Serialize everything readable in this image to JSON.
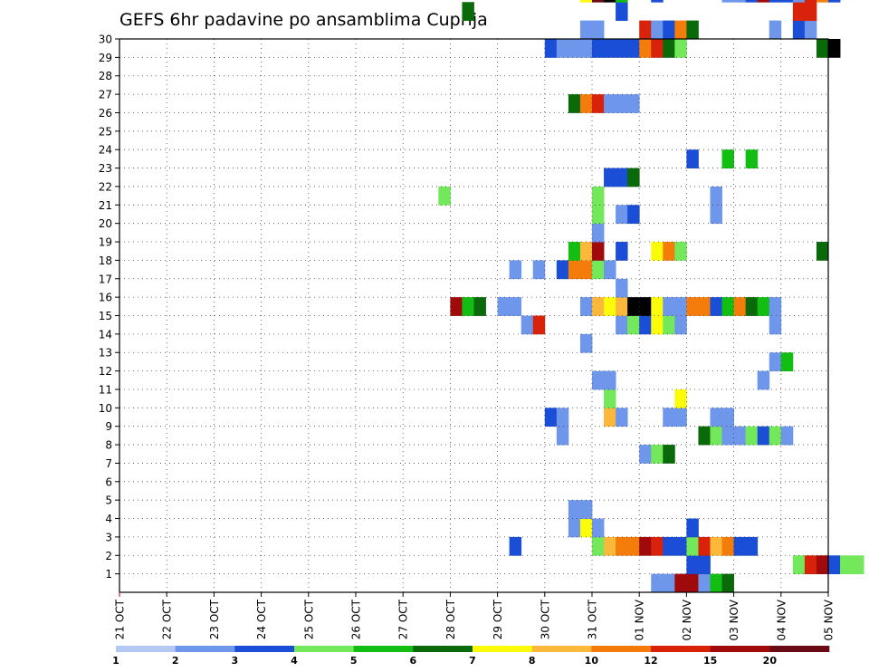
{
  "chart_data": {
    "type": "heatmap",
    "title": "GEFS 6hr padavine po ansamblima Cuprija",
    "xlabel": "",
    "ylabel": "",
    "x_tick_labels": [
      "21 OCT",
      "22 OCT",
      "23 OCT",
      "24 OCT",
      "25 OCT",
      "26 OCT",
      "27 OCT",
      "28 OCT",
      "29 OCT",
      "30 OCT",
      "31 OCT",
      "01 NOV",
      "02 NOV",
      "03 NOV",
      "04 NOV",
      "05 NOV"
    ],
    "x_range_steps": [
      0,
      60
    ],
    "steps_per_day": 4,
    "y_tick_labels": [
      "1",
      "2",
      "3",
      "4",
      "5",
      "6",
      "7",
      "8",
      "9",
      "10",
      "11",
      "12",
      "13",
      "14",
      "15",
      "16",
      "17",
      "18",
      "19",
      "20",
      "21",
      "22",
      "23",
      "24",
      "25",
      "26",
      "27",
      "28",
      "29",
      "30"
    ],
    "y_range": [
      0,
      30
    ],
    "grid": true,
    "colorbar": {
      "orientation": "horizontal",
      "placement": "bottom",
      "boundaries": [
        1,
        2,
        3,
        4,
        5,
        6,
        7,
        8,
        10,
        12,
        15,
        20
      ],
      "labels": [
        "1",
        "2",
        "3",
        "4",
        "5",
        "6",
        "7",
        "8",
        "10",
        "12",
        "15",
        "20"
      ],
      "colors": [
        "#b4c8f4",
        "#6e96eb",
        "#1a4ed6",
        "#72e85a",
        "#12be12",
        "#0a6a0a",
        "#fcfc0a",
        "#fcb83a",
        "#f47c0a",
        "#d8220a",
        "#a00a0a",
        "#6a0a14"
      ]
    },
    "cells": [
      [
        45,
        0,
        1
      ],
      [
        46,
        0,
        1
      ],
      [
        47,
        0,
        10
      ],
      [
        48,
        0,
        10
      ],
      [
        49,
        0,
        1
      ],
      [
        50,
        0,
        4
      ],
      [
        51,
        0,
        5
      ],
      [
        48,
        1,
        2
      ],
      [
        49,
        1,
        2
      ],
      [
        57,
        1,
        3
      ],
      [
        58,
        1,
        9
      ],
      [
        59,
        1,
        10
      ],
      [
        60,
        1,
        2
      ],
      [
        61,
        1,
        3
      ],
      [
        62,
        1,
        3
      ],
      [
        33,
        2,
        2
      ],
      [
        40,
        2,
        3
      ],
      [
        41,
        2,
        7
      ],
      [
        42,
        2,
        8
      ],
      [
        43,
        2,
        8
      ],
      [
        44,
        2,
        10
      ],
      [
        45,
        2,
        9
      ],
      [
        46,
        2,
        2
      ],
      [
        47,
        2,
        2
      ],
      [
        48,
        2,
        3
      ],
      [
        49,
        2,
        9
      ],
      [
        50,
        2,
        7
      ],
      [
        51,
        2,
        8
      ],
      [
        52,
        2,
        2
      ],
      [
        53,
        2,
        2
      ],
      [
        38,
        3,
        1
      ],
      [
        39,
        3,
        6
      ],
      [
        40,
        3,
        1
      ],
      [
        48,
        3,
        2
      ],
      [
        38,
        4,
        1
      ],
      [
        39,
        4,
        1
      ],
      [
        44,
        7,
        1
      ],
      [
        45,
        7,
        3
      ],
      [
        46,
        7,
        5
      ],
      [
        37,
        8,
        1
      ],
      [
        49,
        8,
        5
      ],
      [
        50,
        8,
        3
      ],
      [
        51,
        8,
        1
      ],
      [
        52,
        8,
        1
      ],
      [
        53,
        8,
        3
      ],
      [
        54,
        8,
        2
      ],
      [
        55,
        8,
        3
      ],
      [
        56,
        8,
        1
      ],
      [
        36,
        9,
        2
      ],
      [
        37,
        9,
        1
      ],
      [
        41,
        9,
        7
      ],
      [
        42,
        9,
        1
      ],
      [
        46,
        9,
        1
      ],
      [
        47,
        9,
        1
      ],
      [
        50,
        9,
        1
      ],
      [
        51,
        9,
        1
      ],
      [
        41,
        10,
        3
      ],
      [
        47,
        10,
        6
      ],
      [
        40,
        11,
        1
      ],
      [
        41,
        11,
        1
      ],
      [
        54,
        11,
        1
      ],
      [
        55,
        12,
        1
      ],
      [
        56,
        12,
        4
      ],
      [
        39,
        13,
        1
      ],
      [
        34,
        14,
        1
      ],
      [
        35,
        14,
        9
      ],
      [
        42,
        14,
        1
      ],
      [
        43,
        14,
        3
      ],
      [
        44,
        14,
        2
      ],
      [
        45,
        14,
        6
      ],
      [
        46,
        14,
        3
      ],
      [
        47,
        14,
        1
      ],
      [
        55,
        14,
        1
      ],
      [
        28,
        15,
        10
      ],
      [
        29,
        15,
        4
      ],
      [
        30,
        15,
        5
      ],
      [
        32,
        15,
        1
      ],
      [
        33,
        15,
        1
      ],
      [
        39,
        15,
        1
      ],
      [
        40,
        15,
        7
      ],
      [
        41,
        15,
        6
      ],
      [
        42,
        15,
        7
      ],
      [
        43,
        15,
        12
      ],
      [
        44,
        15,
        12
      ],
      [
        45,
        15,
        6
      ],
      [
        46,
        15,
        1
      ],
      [
        47,
        15,
        1
      ],
      [
        48,
        15,
        8
      ],
      [
        49,
        15,
        8
      ],
      [
        50,
        15,
        2
      ],
      [
        51,
        15,
        4
      ],
      [
        52,
        15,
        8
      ],
      [
        53,
        15,
        5
      ],
      [
        54,
        15,
        4
      ],
      [
        55,
        15,
        1
      ],
      [
        42,
        16,
        1
      ],
      [
        33,
        17,
        1
      ],
      [
        35,
        17,
        1
      ],
      [
        37,
        17,
        2
      ],
      [
        38,
        17,
        8
      ],
      [
        39,
        17,
        8
      ],
      [
        40,
        17,
        3
      ],
      [
        41,
        17,
        1
      ],
      [
        38,
        18,
        4
      ],
      [
        39,
        18,
        7
      ],
      [
        40,
        18,
        10
      ],
      [
        42,
        18,
        2
      ],
      [
        45,
        18,
        6
      ],
      [
        46,
        18,
        8
      ],
      [
        47,
        18,
        3
      ],
      [
        59,
        18,
        5
      ],
      [
        40,
        19,
        1
      ],
      [
        40,
        20,
        3
      ],
      [
        42,
        20,
        1
      ],
      [
        43,
        20,
        2
      ],
      [
        50,
        20,
        1
      ],
      [
        27,
        21,
        3
      ],
      [
        40,
        21,
        3
      ],
      [
        50,
        21,
        1
      ],
      [
        41,
        22,
        2
      ],
      [
        42,
        22,
        2
      ],
      [
        43,
        22,
        5
      ],
      [
        48,
        23,
        2
      ],
      [
        51,
        23,
        4
      ],
      [
        53,
        23,
        4
      ],
      [
        38,
        26,
        5
      ],
      [
        39,
        26,
        8
      ],
      [
        40,
        26,
        9
      ],
      [
        41,
        26,
        1
      ],
      [
        42,
        26,
        1
      ],
      [
        43,
        26,
        1
      ],
      [
        36,
        29,
        2
      ],
      [
        37,
        29,
        1
      ],
      [
        38,
        29,
        1
      ],
      [
        39,
        29,
        1
      ],
      [
        40,
        29,
        2
      ],
      [
        41,
        29,
        2
      ],
      [
        42,
        29,
        2
      ],
      [
        43,
        29,
        2
      ],
      [
        44,
        29,
        8
      ],
      [
        45,
        29,
        9
      ],
      [
        46,
        29,
        5
      ],
      [
        47,
        29,
        3
      ],
      [
        59,
        29,
        5
      ],
      [
        60,
        29,
        12
      ],
      [
        39,
        30,
        1
      ],
      [
        40,
        30,
        1
      ],
      [
        44,
        30,
        9
      ],
      [
        45,
        30,
        1
      ],
      [
        46,
        30,
        2
      ],
      [
        47,
        30,
        8
      ],
      [
        48,
        30,
        5
      ],
      [
        55,
        30,
        1
      ],
      [
        57,
        30,
        2
      ],
      [
        58,
        30,
        1
      ],
      [
        29,
        31,
        5
      ],
      [
        42,
        31,
        2
      ],
      [
        57,
        31,
        9
      ],
      [
        58,
        31,
        9
      ],
      [
        39,
        32,
        6
      ],
      [
        40,
        32,
        11
      ],
      [
        41,
        32,
        12
      ],
      [
        42,
        32,
        4
      ],
      [
        45,
        32,
        2
      ],
      [
        51,
        32,
        1
      ],
      [
        52,
        32,
        1
      ],
      [
        53,
        32,
        2
      ],
      [
        54,
        32,
        10
      ],
      [
        55,
        32,
        2
      ],
      [
        56,
        32,
        2
      ],
      [
        57,
        32,
        1
      ],
      [
        58,
        32,
        9
      ],
      [
        59,
        32,
        8
      ],
      [
        60,
        32,
        2
      ]
    ]
  }
}
